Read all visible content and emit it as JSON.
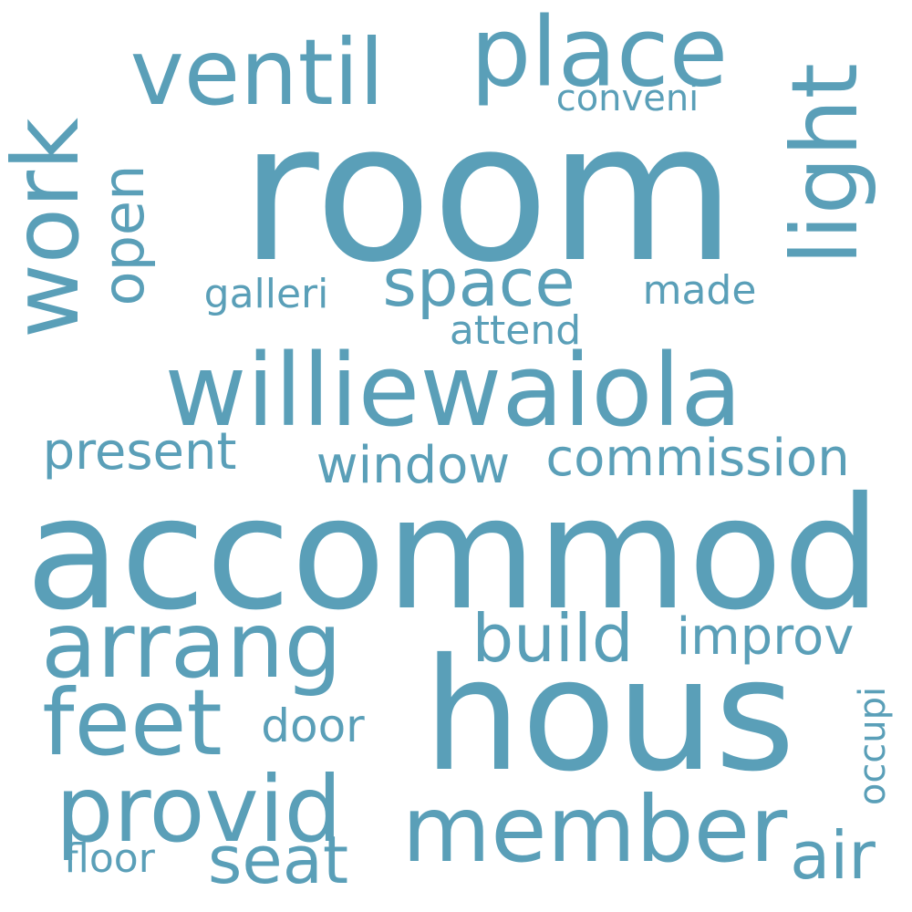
{
  "color": "#5a9fb8",
  "words": {
    "room": "room",
    "accommod": "accommod",
    "hous": "hous",
    "williewaiola": "williewaiola",
    "place": "place",
    "ventil": "ventil",
    "light": "light",
    "work": "work",
    "open": "open",
    "space": "space",
    "galleri": "galleri",
    "made": "made",
    "attend": "attend",
    "conveni": "conveni",
    "present": "present",
    "window": "window",
    "commission": "commission",
    "arrang": "arrang",
    "build": "build",
    "improv": "improv",
    "feet": "feet",
    "door": "door",
    "provid": "provid",
    "member": "member",
    "occupi": "occupi",
    "air": "air",
    "seat": "seat",
    "floor": "floor"
  }
}
